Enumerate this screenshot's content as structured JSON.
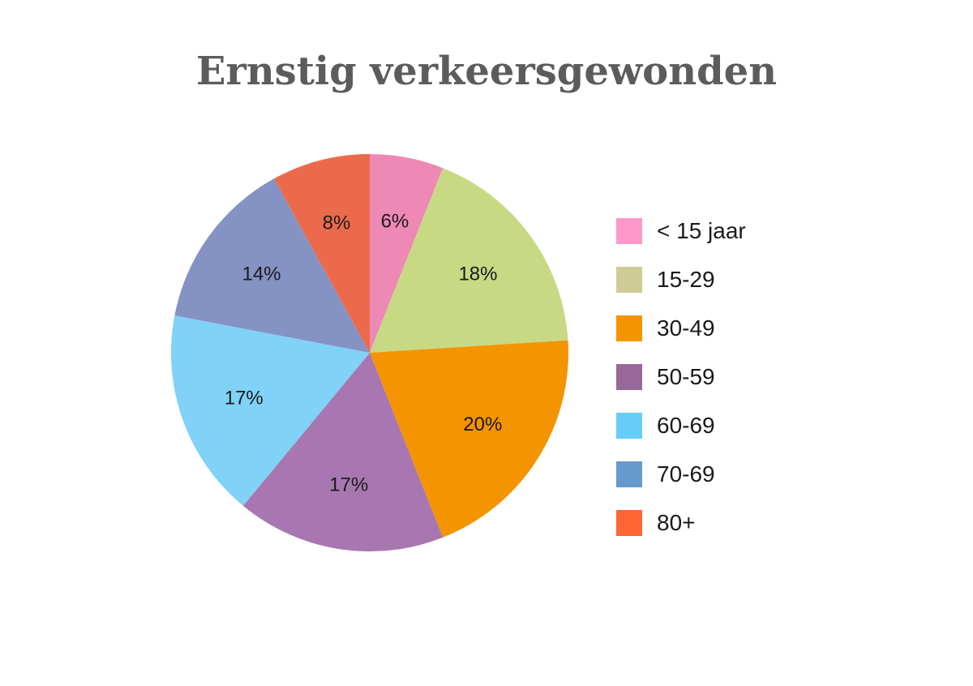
{
  "chart_data": {
    "type": "pie",
    "title": "Ernstig verkeersgewonden",
    "slices": [
      {
        "label": "< 15 jaar",
        "value": 6,
        "display": "6%",
        "color": "#ee88b4",
        "legend_color": "#fd98c8"
      },
      {
        "label": "15-29",
        "value": 18,
        "display": "18%",
        "color": "#c7d983",
        "legend_color": "#cfcb95"
      },
      {
        "label": "30-49",
        "value": 20,
        "display": "20%",
        "color": "#f39400",
        "legend_color": "#f39400"
      },
      {
        "label": "50-59",
        "value": 17,
        "display": "17%",
        "color": "#a877b1",
        "legend_color": "#98689a"
      },
      {
        "label": "60-69",
        "value": 17,
        "display": "17%",
        "color": "#80d2f6",
        "legend_color": "#66ccfa"
      },
      {
        "label": "70-69",
        "value": 14,
        "display": "14%",
        "color": "#8592c4",
        "legend_color": "#6699cc"
      },
      {
        "label": "80+",
        "value": 8,
        "display": "8%",
        "color": "#ec6a4c",
        "legend_color": "#ff6633"
      }
    ],
    "legend_position": "right"
  }
}
